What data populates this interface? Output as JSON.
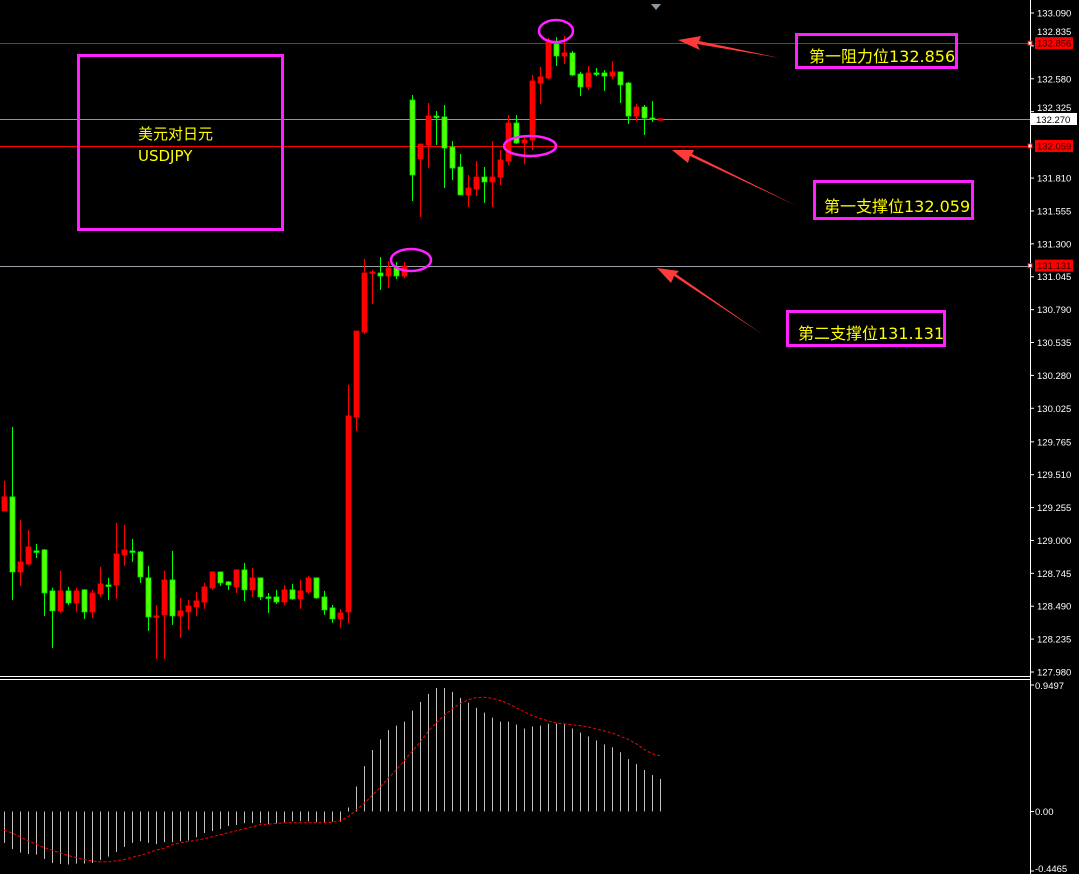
{
  "chart_data": {
    "type": "candlestick",
    "symbol_name_cn": "美元对日元",
    "symbol": "USDJPY",
    "up_color": "#ff0000",
    "down_color": "#00ff00",
    "ylim": [
      127.98,
      133.09
    ],
    "grid": false,
    "ohlc": [
      [
        129.229,
        129.462,
        129.229,
        129.338
      ],
      [
        129.338,
        129.88,
        128.539,
        128.756
      ],
      [
        128.756,
        129.159,
        128.648,
        128.834
      ],
      [
        128.818,
        129.082,
        128.81,
        128.95
      ],
      [
        128.919,
        128.973,
        128.865,
        128.911
      ],
      [
        128.927,
        128.934,
        128.415,
        128.593
      ],
      [
        128.609,
        128.632,
        128.167,
        128.454
      ],
      [
        128.454,
        128.764,
        128.438,
        128.609
      ],
      [
        128.609,
        128.64,
        128.5,
        128.516
      ],
      [
        128.516,
        128.632,
        128.446,
        128.609
      ],
      [
        128.617,
        128.624,
        128.392,
        128.446
      ],
      [
        128.446,
        128.617,
        128.399,
        128.593
      ],
      [
        128.586,
        128.795,
        128.562,
        128.663
      ],
      [
        128.655,
        128.71,
        128.539,
        128.648
      ],
      [
        128.655,
        129.136,
        128.547,
        128.896
      ],
      [
        128.888,
        129.121,
        128.803,
        128.927
      ],
      [
        128.919,
        129.012,
        128.834,
        128.911
      ],
      [
        128.911,
        128.919,
        128.671,
        128.717
      ],
      [
        128.71,
        128.803,
        128.299,
        128.407
      ],
      [
        128.407,
        128.5,
        128.082,
        128.415
      ],
      [
        128.423,
        128.764,
        128.082,
        128.694
      ],
      [
        128.694,
        128.919,
        128.345,
        128.415
      ],
      [
        128.415,
        128.555,
        128.244,
        128.454
      ],
      [
        128.446,
        128.539,
        128.307,
        128.492
      ],
      [
        128.485,
        128.601,
        128.415,
        128.531
      ],
      [
        128.523,
        128.671,
        128.469,
        128.64
      ],
      [
        128.632,
        128.756,
        128.617,
        128.756
      ],
      [
        128.756,
        128.756,
        128.648,
        128.671
      ],
      [
        128.679,
        128.686,
        128.617,
        128.655
      ],
      [
        128.64,
        128.772,
        128.593,
        128.772
      ],
      [
        128.772,
        128.826,
        128.531,
        128.617
      ],
      [
        128.617,
        128.787,
        128.562,
        128.71
      ],
      [
        128.71,
        128.71,
        128.539,
        128.562
      ],
      [
        128.562,
        128.593,
        128.438,
        128.555
      ],
      [
        128.562,
        128.617,
        128.508,
        128.523
      ],
      [
        128.523,
        128.655,
        128.5,
        128.617
      ],
      [
        128.617,
        128.663,
        128.539,
        128.547
      ],
      [
        128.547,
        128.694,
        128.469,
        128.609
      ],
      [
        128.601,
        128.725,
        128.586,
        128.71
      ],
      [
        128.71,
        128.71,
        128.547,
        128.555
      ],
      [
        128.562,
        128.609,
        128.423,
        128.462
      ],
      [
        128.477,
        128.5,
        128.361,
        128.392
      ],
      [
        128.392,
        128.469,
        128.322,
        128.438
      ],
      [
        128.446,
        130.206,
        128.361,
        129.965
      ],
      [
        129.957,
        130.624,
        129.849,
        130.624
      ],
      [
        130.616,
        131.182,
        130.601,
        131.074
      ],
      [
        131.074,
        131.097,
        130.834,
        131.082
      ],
      [
        131.074,
        131.198,
        130.942,
        131.051
      ],
      [
        131.051,
        131.167,
        130.958,
        131.113
      ],
      [
        131.113,
        131.159,
        131.027,
        131.051
      ],
      [
        131.051,
        131.159,
        131.035,
        131.128
      ],
      [
        132.415,
        132.454,
        131.632,
        131.834
      ],
      [
        131.958,
        132.074,
        131.508,
        132.074
      ],
      [
        132.066,
        132.392,
        131.888,
        132.291
      ],
      [
        132.291,
        132.33,
        132.066,
        132.284
      ],
      [
        132.284,
        132.377,
        131.733,
        132.043
      ],
      [
        132.051,
        132.097,
        131.795,
        131.888
      ],
      [
        131.896,
        131.997,
        131.679,
        131.679
      ],
      [
        131.679,
        131.834,
        131.586,
        131.733
      ],
      [
        131.725,
        131.942,
        131.671,
        131.818
      ],
      [
        131.818,
        131.896,
        131.617,
        131.78
      ],
      [
        131.78,
        132.097,
        131.586,
        131.818
      ],
      [
        131.818,
        132.028,
        131.756,
        131.95
      ],
      [
        131.942,
        132.299,
        131.911,
        132.237
      ],
      [
        132.237,
        132.299,
        132.074,
        132.082
      ],
      [
        132.082,
        132.144,
        131.919,
        132.105
      ],
      [
        132.105,
        132.609,
        132.028,
        132.563
      ],
      [
        132.547,
        132.671,
        132.384,
        132.594
      ],
      [
        132.586,
        132.896,
        132.578,
        132.865
      ],
      [
        132.85,
        132.904,
        132.679,
        132.757
      ],
      [
        132.757,
        132.912,
        132.695,
        132.78
      ],
      [
        132.78,
        132.795,
        132.601,
        132.609
      ],
      [
        132.617,
        132.633,
        132.446,
        132.516
      ],
      [
        132.516,
        132.679,
        132.493,
        132.625
      ],
      [
        132.625,
        132.664,
        132.601,
        132.617
      ],
      [
        132.625,
        132.648,
        132.485,
        132.601
      ],
      [
        132.601,
        132.718,
        132.578,
        132.633
      ],
      [
        132.633,
        132.633,
        132.392,
        132.532
      ],
      [
        132.547,
        132.555,
        132.229,
        132.291
      ],
      [
        132.291,
        132.384,
        132.253,
        132.361
      ],
      [
        132.361,
        132.377,
        132.144,
        132.276
      ],
      [
        132.276,
        132.408,
        132.245,
        132.268
      ],
      [
        132.27,
        132.27,
        132.27,
        132.27
      ]
    ],
    "y_ticks": [
      "133.090",
      "132.835",
      "132.580",
      "132.325",
      "131.810",
      "131.555",
      "131.300",
      "131.045",
      "130.790",
      "130.535",
      "130.280",
      "130.025",
      "129.765",
      "129.510",
      "129.255",
      "129.000",
      "128.745",
      "128.490",
      "128.235",
      "127.980"
    ],
    "current_price": "132.270",
    "levels": [
      {
        "label": "132.856",
        "value": 132.856,
        "line_color": "#ff0000",
        "text": "第一阻力位132.856"
      },
      {
        "label": "132.059",
        "value": 132.059,
        "line_color": "#ff0000",
        "text": "第一支撑位132.059"
      },
      {
        "label": "131.131",
        "value": 131.131,
        "line_color": "#9aa0a8",
        "text": "第二支撑位131.131"
      }
    ],
    "indicator": {
      "type": "histogram+signal",
      "ylim": [
        -0.4465,
        0.9497
      ],
      "y_ticks": [
        "0.9497",
        "0.00",
        "-0.4465"
      ],
      "histogram_color": "#c0c0c0",
      "signal_color": "#ff0000",
      "histogram": [
        -0.235,
        -0.282,
        -0.309,
        -0.319,
        -0.324,
        -0.356,
        -0.386,
        -0.393,
        -0.398,
        -0.391,
        -0.391,
        -0.386,
        -0.363,
        -0.339,
        -0.304,
        -0.265,
        -0.235,
        -0.223,
        -0.235,
        -0.245,
        -0.23,
        -0.23,
        -0.223,
        -0.218,
        -0.193,
        -0.161,
        -0.146,
        -0.131,
        -0.109,
        -0.101,
        -0.087,
        -0.087,
        -0.087,
        -0.096,
        -0.089,
        -0.079,
        -0.074,
        -0.072,
        -0.074,
        -0.079,
        -0.079,
        -0.077,
        -0.077,
        0.03,
        0.188,
        0.341,
        0.462,
        0.542,
        0.611,
        0.645,
        0.675,
        0.757,
        0.823,
        0.883,
        0.927,
        0.927,
        0.898,
        0.853,
        0.816,
        0.779,
        0.742,
        0.705,
        0.675,
        0.675,
        0.653,
        0.623,
        0.638,
        0.645,
        0.66,
        0.66,
        0.653,
        0.623,
        0.593,
        0.564,
        0.534,
        0.504,
        0.482,
        0.445,
        0.393,
        0.356,
        0.312,
        0.274,
        0.245
      ],
      "signal": [
        -0.14,
        -0.16,
        -0.19,
        -0.22,
        -0.245,
        -0.27,
        -0.29,
        -0.31,
        -0.33,
        -0.345,
        -0.36,
        -0.37,
        -0.378,
        -0.378,
        -0.37,
        -0.36,
        -0.345,
        -0.33,
        -0.31,
        -0.29,
        -0.275,
        -0.25,
        -0.235,
        -0.225,
        -0.215,
        -0.205,
        -0.19,
        -0.175,
        -0.16,
        -0.145,
        -0.13,
        -0.115,
        -0.1,
        -0.095,
        -0.09,
        -0.085,
        -0.084,
        -0.084,
        -0.084,
        -0.084,
        -0.084,
        -0.08,
        -0.07,
        -0.04,
        0.01,
        0.06,
        0.12,
        0.18,
        0.25,
        0.31,
        0.38,
        0.45,
        0.52,
        0.6,
        0.665,
        0.72,
        0.77,
        0.81,
        0.838,
        0.855,
        0.858,
        0.85,
        0.835,
        0.81,
        0.78,
        0.75,
        0.72,
        0.7,
        0.68,
        0.665,
        0.658,
        0.652,
        0.645,
        0.635,
        0.621,
        0.605,
        0.59,
        0.565,
        0.542,
        0.51,
        0.467,
        0.435,
        0.418
      ]
    },
    "annotation_color": "#ff22ff",
    "annotation_text_color": "#ffff00"
  }
}
